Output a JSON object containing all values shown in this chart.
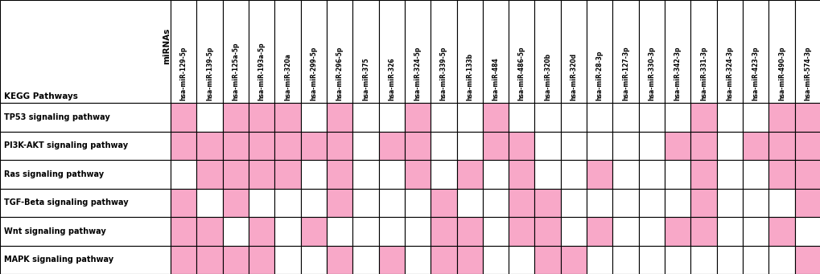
{
  "mirnas": [
    "hsa-miR-129-5p",
    "hsa-miR-139-5p",
    "hsa-miR-125a-5p",
    "hsa-miR-193a-5p",
    "hsa-miR-320a",
    "hsa-miR-299-5p",
    "hsa-miR-296-5p",
    "hsa-miR-375",
    "hsa-miR-326",
    "hsa-miR-324-5p",
    "hsa-miR-339-5p",
    "hsa-miR-133b",
    "hsa-miR-484",
    "hsa-miR-486-5p",
    "hsa-miR-320b",
    "hsa-miR-320d",
    "hsa-miR-28-3p",
    "hsa-miR-127-3p",
    "hsa-miR-330-3p",
    "hsa-miR-342-3p",
    "hsa-miR-331-3p",
    "hsa-miR-324-3p",
    "hsa-miR-423-3p",
    "hsa-miR-490-3p",
    "hsa-miR-574-3p"
  ],
  "pathways": [
    "TP53 signaling pathway",
    "PI3K-AKT signaling pathway",
    "Ras signaling pathway",
    "TGF-Beta signaling pathway",
    "Wnt signaling pathway",
    "MAPK signaling pathway"
  ],
  "pink_cells": {
    "TP53 signaling pathway": [
      1,
      0,
      1,
      1,
      1,
      0,
      1,
      0,
      0,
      1,
      0,
      0,
      1,
      0,
      0,
      0,
      0,
      0,
      0,
      0,
      1,
      0,
      0,
      1,
      1
    ],
    "PI3K-AKT signaling pathway": [
      1,
      1,
      1,
      1,
      1,
      1,
      1,
      0,
      1,
      1,
      0,
      0,
      1,
      1,
      0,
      0,
      0,
      0,
      0,
      1,
      1,
      0,
      1,
      1,
      1
    ],
    "Ras signaling pathway": [
      0,
      1,
      1,
      1,
      1,
      0,
      1,
      0,
      0,
      1,
      0,
      1,
      0,
      1,
      0,
      0,
      1,
      0,
      0,
      0,
      1,
      0,
      0,
      1,
      1
    ],
    "TGF-Beta signaling pathway": [
      1,
      0,
      1,
      0,
      0,
      0,
      1,
      0,
      0,
      0,
      1,
      0,
      0,
      1,
      1,
      0,
      0,
      0,
      0,
      0,
      1,
      0,
      0,
      0,
      1
    ],
    "Wnt signaling pathway": [
      1,
      1,
      0,
      1,
      0,
      1,
      0,
      0,
      0,
      0,
      1,
      1,
      0,
      1,
      1,
      0,
      1,
      0,
      0,
      1,
      1,
      0,
      0,
      1,
      0
    ],
    "MAPK signaling pathway": [
      1,
      1,
      1,
      1,
      0,
      0,
      1,
      0,
      1,
      0,
      1,
      1,
      0,
      0,
      1,
      1,
      0,
      0,
      0,
      0,
      0,
      0,
      0,
      0,
      1
    ]
  },
  "pink_color": "#F8A8C8",
  "kegg_label": "KEGG Pathways",
  "mirnas_label": "miRNAs",
  "fig_width": 10.2,
  "fig_height": 3.41,
  "dpi": 100
}
